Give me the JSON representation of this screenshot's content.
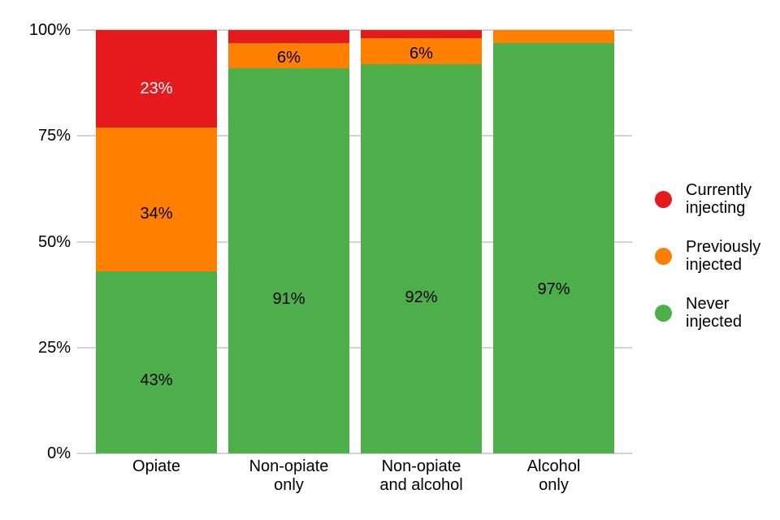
{
  "chart_data": {
    "type": "bar",
    "stacked": true,
    "orientation": "vertical",
    "title": "",
    "xlabel": "",
    "ylabel": "",
    "y_axis": {
      "range": [
        0,
        100
      ],
      "tick_values": [
        0,
        25,
        50,
        75,
        100
      ],
      "tick_labels": [
        "0%",
        "25%",
        "50%",
        "75%",
        "100%"
      ],
      "grid": true
    },
    "categories": [
      [
        "Opiate"
      ],
      [
        "Non-opiate",
        "only"
      ],
      [
        "Non-opiate",
        "and alcohol"
      ],
      [
        "Alcohol",
        "only"
      ]
    ],
    "series_bottom_to_top": [
      {
        "name": "Never injected",
        "color": "#4daf4a",
        "values": [
          43,
          91,
          92,
          97
        ],
        "labels": [
          "43%",
          "91%",
          "92%",
          "97%"
        ],
        "label_color": "#000000"
      },
      {
        "name": "Previously injected",
        "color": "#ff7f00",
        "values": [
          34,
          6,
          6,
          3
        ],
        "labels": [
          "34%",
          "6%",
          "6%",
          ""
        ],
        "label_color": "#000000"
      },
      {
        "name": "Currently injecting",
        "color": "#e41a1c",
        "values": [
          23,
          3,
          2,
          0
        ],
        "labels": [
          "23%",
          "",
          "",
          ""
        ],
        "label_color": "#ffffff"
      }
    ],
    "legend": {
      "position": "right",
      "items": [
        {
          "lines": [
            "Currently",
            "injecting"
          ],
          "color": "#e41a1c"
        },
        {
          "lines": [
            "Previously",
            "injected"
          ],
          "color": "#ff7f00"
        },
        {
          "lines": [
            "Never",
            "injected"
          ],
          "color": "#4daf4a"
        }
      ]
    }
  },
  "colors": {
    "background": "#ffffff",
    "gridline": "#d3d3d3",
    "text": "#000000"
  }
}
